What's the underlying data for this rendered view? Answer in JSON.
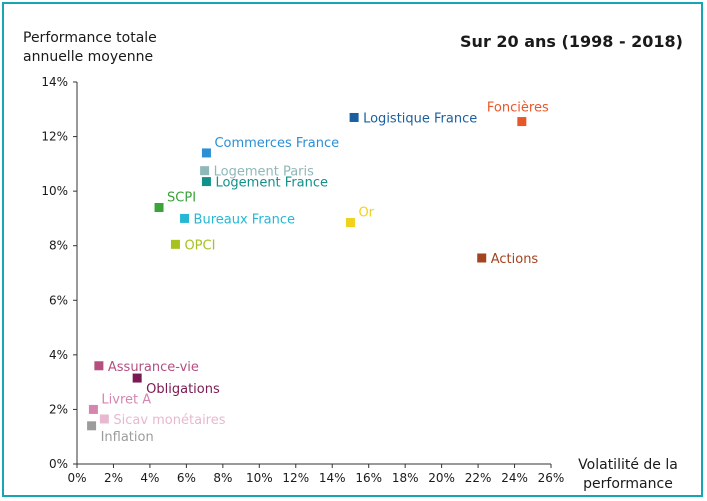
{
  "chart_data": {
    "type": "scatter",
    "title": "Sur 20 ans (1998 - 2018)",
    "ylabel_lines": [
      "Performance totale",
      "annuelle moyenne"
    ],
    "xlabel_lines": [
      "Volatilité de la",
      "performance"
    ],
    "xlim": [
      0,
      26
    ],
    "ylim": [
      0,
      14
    ],
    "x_ticks": [
      "0%",
      "2%",
      "4%",
      "6%",
      "8%",
      "10%",
      "12%",
      "14%",
      "16%",
      "18%",
      "20%",
      "22%",
      "24%",
      "26%"
    ],
    "y_ticks": [
      "0%",
      "2%",
      "4%",
      "6%",
      "8%",
      "10%",
      "12%",
      "14%"
    ],
    "grid": false,
    "points": [
      {
        "label": "Logistique France",
        "x": 15.2,
        "y": 12.7,
        "color": "#1a5fa0",
        "label_pos": "right"
      },
      {
        "label": "Foncières",
        "x": 24.4,
        "y": 12.55,
        "color": "#e8572a",
        "label_pos": "above"
      },
      {
        "label": "Commerces France",
        "x": 7.1,
        "y": 11.4,
        "color": "#2b8fd6",
        "label_pos": "upper-right"
      },
      {
        "label": "Logement Paris",
        "x": 7.0,
        "y": 10.75,
        "color": "#8fb8b8",
        "label_pos": "right"
      },
      {
        "label": "Logement France",
        "x": 7.1,
        "y": 10.35,
        "color": "#12918a",
        "label_pos": "right"
      },
      {
        "label": "SCPI",
        "x": 4.5,
        "y": 9.4,
        "color": "#3aa33a",
        "label_pos": "upper-right"
      },
      {
        "label": "Bureaux France",
        "x": 5.9,
        "y": 9.0,
        "color": "#25b7d3",
        "label_pos": "right"
      },
      {
        "label": "Or",
        "x": 15.0,
        "y": 8.85,
        "color": "#f0d21e",
        "label_pos": "upper-right"
      },
      {
        "label": "OPCI",
        "x": 5.4,
        "y": 8.05,
        "color": "#a6c21f",
        "label_pos": "right"
      },
      {
        "label": "Actions",
        "x": 22.2,
        "y": 7.55,
        "color": "#a3431f",
        "label_pos": "right"
      },
      {
        "label": "Assurance-vie",
        "x": 1.2,
        "y": 3.6,
        "color": "#b44f7f",
        "label_pos": "right"
      },
      {
        "label": "Obligations",
        "x": 3.3,
        "y": 3.15,
        "color": "#7a1a52",
        "label_pos": "lower-right"
      },
      {
        "label": "Livret A",
        "x": 0.9,
        "y": 2.0,
        "color": "#d685b0",
        "label_pos": "upper-right"
      },
      {
        "label": "Sicav monétaires",
        "x": 1.5,
        "y": 1.65,
        "color": "#e8b8cf",
        "label_pos": "right"
      },
      {
        "label": "Inflation",
        "x": 0.8,
        "y": 1.4,
        "color": "#9c9c9c",
        "label_pos": "lower-right"
      }
    ]
  }
}
